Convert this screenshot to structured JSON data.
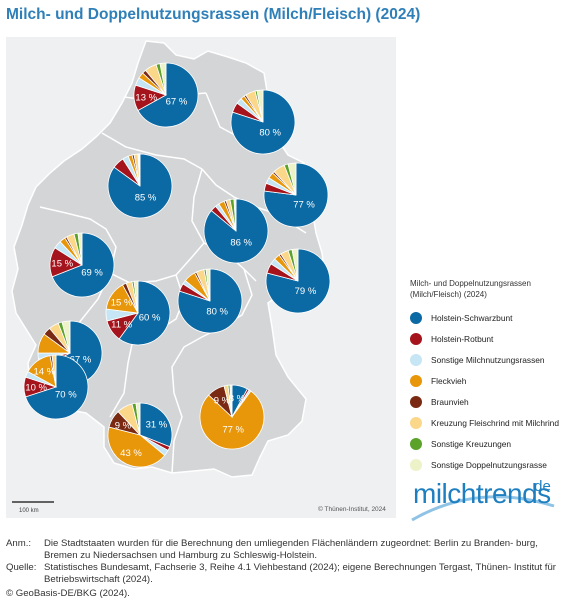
{
  "title": "Milch- und Doppelnutzungsrassen (Milch/Fleisch) (2024)",
  "map": {
    "copyright": "© Thünen-Institut, 2024",
    "scale_label": "100 km",
    "background_color": "#eef0f2",
    "land_color": "#d4d5d7",
    "border_color": "#ffffff"
  },
  "categories": [
    {
      "key": "hs",
      "label": "Holstein-Schwarzbunt",
      "color": "#0b69a3"
    },
    {
      "key": "hr",
      "label": "Holstein-Rotbunt",
      "color": "#a5141c"
    },
    {
      "key": "sm",
      "label": "Sonstige Milchnutzungsrassen",
      "color": "#c6e6f5"
    },
    {
      "key": "fv",
      "label": "Fleckvieh",
      "color": "#e8960a"
    },
    {
      "key": "bv",
      "label": "Braunvieh",
      "color": "#7a2a12"
    },
    {
      "key": "kf",
      "label": "Kreuzung Fleischrind mit Milchrind",
      "color": "#fbd78a"
    },
    {
      "key": "sk",
      "label": "Sonstige Kreuzungen",
      "color": "#5aa22a"
    },
    {
      "key": "sd",
      "label": "Sonstige Doppelnutzungsrasse",
      "color": "#eef2c8"
    }
  ],
  "legend": {
    "title_line1": "Milch- und Doppelnutzungsrassen",
    "title_line2": "(Milch/Fleisch) (2024)"
  },
  "regions": [
    {
      "name": "SH",
      "values": {
        "hs": 67,
        "hr": 13,
        "sm": 4,
        "fv": 3,
        "bv": 2,
        "kf": 6,
        "sk": 2,
        "sd": 3
      },
      "labels": [
        {
          "key": "hs",
          "text": "67 %"
        },
        {
          "key": "hr",
          "text": "13 %"
        }
      ]
    },
    {
      "name": "MV",
      "values": {
        "hs": 80,
        "hr": 5,
        "sm": 3,
        "fv": 2,
        "bv": 1,
        "kf": 5,
        "sk": 1,
        "sd": 3
      },
      "labels": [
        {
          "key": "hs",
          "text": "80 %"
        }
      ]
    },
    {
      "name": "NI",
      "values": {
        "hs": 85,
        "hr": 6,
        "sm": 3,
        "fv": 2,
        "bv": 1,
        "kf": 2,
        "sk": 0.5,
        "sd": 0.5
      },
      "labels": [
        {
          "key": "hs",
          "text": "85 %"
        }
      ]
    },
    {
      "name": "BB",
      "values": {
        "hs": 77,
        "hr": 4,
        "sm": 3,
        "fv": 3,
        "bv": 1,
        "kf": 6,
        "sk": 2,
        "sd": 4
      },
      "labels": [
        {
          "key": "hs",
          "text": "77 %"
        }
      ]
    },
    {
      "name": "ST",
      "values": {
        "hs": 86,
        "hr": 3,
        "sm": 2,
        "fv": 3,
        "bv": 1,
        "kf": 2,
        "sk": 2,
        "sd": 1
      },
      "labels": [
        {
          "key": "hs",
          "text": "86 %"
        }
      ]
    },
    {
      "name": "NW",
      "values": {
        "hs": 69,
        "hr": 15,
        "sm": 4,
        "fv": 3,
        "bv": 1,
        "kf": 4,
        "sk": 2,
        "sd": 2
      },
      "labels": [
        {
          "key": "hs",
          "text": "69 %"
        },
        {
          "key": "hr",
          "text": "15 %"
        }
      ]
    },
    {
      "name": "HE",
      "values": {
        "hs": 60,
        "hr": 11,
        "sm": 6,
        "fv": 15,
        "bv": 2,
        "kf": 3,
        "sk": 1,
        "sd": 2
      },
      "labels": [
        {
          "key": "hs",
          "text": "60 %"
        },
        {
          "key": "hr",
          "text": "11 %"
        },
        {
          "key": "fv",
          "text": "15 %"
        }
      ]
    },
    {
      "name": "TH",
      "values": {
        "hs": 80,
        "hr": 4,
        "sm": 2,
        "fv": 6,
        "bv": 1,
        "kf": 4,
        "sk": 1,
        "sd": 2
      },
      "labels": [
        {
          "key": "hs",
          "text": "80 %"
        }
      ]
    },
    {
      "name": "SN",
      "values": {
        "hs": 79,
        "hr": 5,
        "sm": 3,
        "fv": 3,
        "bv": 1,
        "kf": 4,
        "sk": 2,
        "sd": 3
      },
      "labels": [
        {
          "key": "hs",
          "text": "79 %"
        }
      ]
    },
    {
      "name": "RP",
      "values": {
        "hs": 67,
        "hr": 5,
        "sm": 3,
        "fv": 10,
        "bv": 4,
        "kf": 5,
        "sk": 2,
        "sd": 4
      },
      "labels": [
        {
          "key": "hs",
          "text": "67 %"
        }
      ]
    },
    {
      "name": "SL",
      "values": {
        "hs": 70,
        "hr": 10,
        "sm": 3,
        "fv": 14,
        "bv": 1,
        "kf": 2
      },
      "labels": [
        {
          "key": "hs",
          "text": "70 %"
        },
        {
          "key": "hr",
          "text": "10 %"
        },
        {
          "key": "fv",
          "text": "14 %"
        }
      ]
    },
    {
      "name": "BW",
      "values": {
        "hs": 31,
        "hr": 2,
        "fv": 43,
        "bv": 9,
        "kf": 8,
        "sm": 3,
        "sk": 2,
        "sd": 2
      },
      "labels": [
        {
          "key": "hs",
          "text": "31 %"
        },
        {
          "key": "fv",
          "text": "43 %"
        },
        {
          "key": "bv",
          "text": "9 %"
        }
      ]
    },
    {
      "name": "BY",
      "values": {
        "hs": 8,
        "hr": 1,
        "sm": 1,
        "fv": 77,
        "bv": 9,
        "kf": 2,
        "sk": 1,
        "sd": 1
      },
      "labels": [
        {
          "key": "hs",
          "text": "8 %"
        },
        {
          "key": "fv",
          "text": "77 %"
        },
        {
          "key": "bv",
          "text": "9 %"
        }
      ]
    }
  ],
  "brand": {
    "name": "milchtrends",
    "suffix": ".de"
  },
  "notes": [
    {
      "key": "Anm.:",
      "text": "Die Stadtstaaten wurden für die Berechnung den umliegenden Flächenländern zugeordnet: Berlin zu Branden- burg, Bremen zu Niedersachsen und Hamburg zu Schleswig-Holstein."
    },
    {
      "key": "Quelle:",
      "text": "Statistisches Bundesamt, Fachserie 3, Reihe 4.1 Viehbestand (2024); eigene Berechnungen Tergast, Thünen- Institut für Betriebswirtschaft (2024)."
    }
  ],
  "geobasis": "© GeoBasis-DE/BKG (2024)."
}
